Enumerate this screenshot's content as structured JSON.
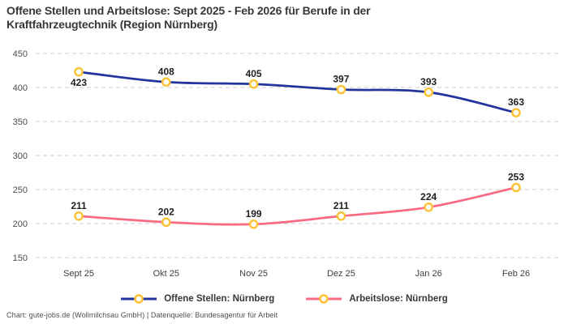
{
  "chart_data": {
    "type": "line",
    "title": "Offene Stellen und Arbeitslose: Sept 2025 - Feb 2026 für Berufe in der\nKraftfahrzeugtechnik (Region Nürnberg)",
    "categories": [
      "Sept 25",
      "Okt 25",
      "Nov 25",
      "Dez 25",
      "Jan 26",
      "Feb 26"
    ],
    "series": [
      {
        "name": "Offene Stellen: Nürnberg",
        "color": "#23349e",
        "values": [
          423,
          408,
          405,
          397,
          393,
          363
        ],
        "label_positions": [
          "below",
          "above",
          "above",
          "above",
          "above",
          "above"
        ]
      },
      {
        "name": "Arbeitslose: Nürnberg",
        "color": "#fa6a82",
        "values": [
          211,
          202,
          199,
          211,
          224,
          253
        ],
        "label_positions": [
          "above",
          "above",
          "above",
          "above",
          "above",
          "above"
        ]
      }
    ],
    "marker_color": "#fcc233",
    "marker_fill": "#ffffff",
    "ylim": [
      150,
      450
    ],
    "yticks": [
      150,
      200,
      250,
      300,
      350,
      400,
      450
    ],
    "grid": "horizontal-dashed",
    "grid_color": "#cccccc",
    "tick_label_color": "#4a4a4a",
    "data_label_color": "#1f1f1f",
    "legend_position": "bottom",
    "xlabel": "",
    "ylabel": ""
  },
  "footer": {
    "text": "Chart: gute-jobs.de (Wollmilchsau GmbH) | Datenquelle: Bundesagentur für Arbeit"
  }
}
